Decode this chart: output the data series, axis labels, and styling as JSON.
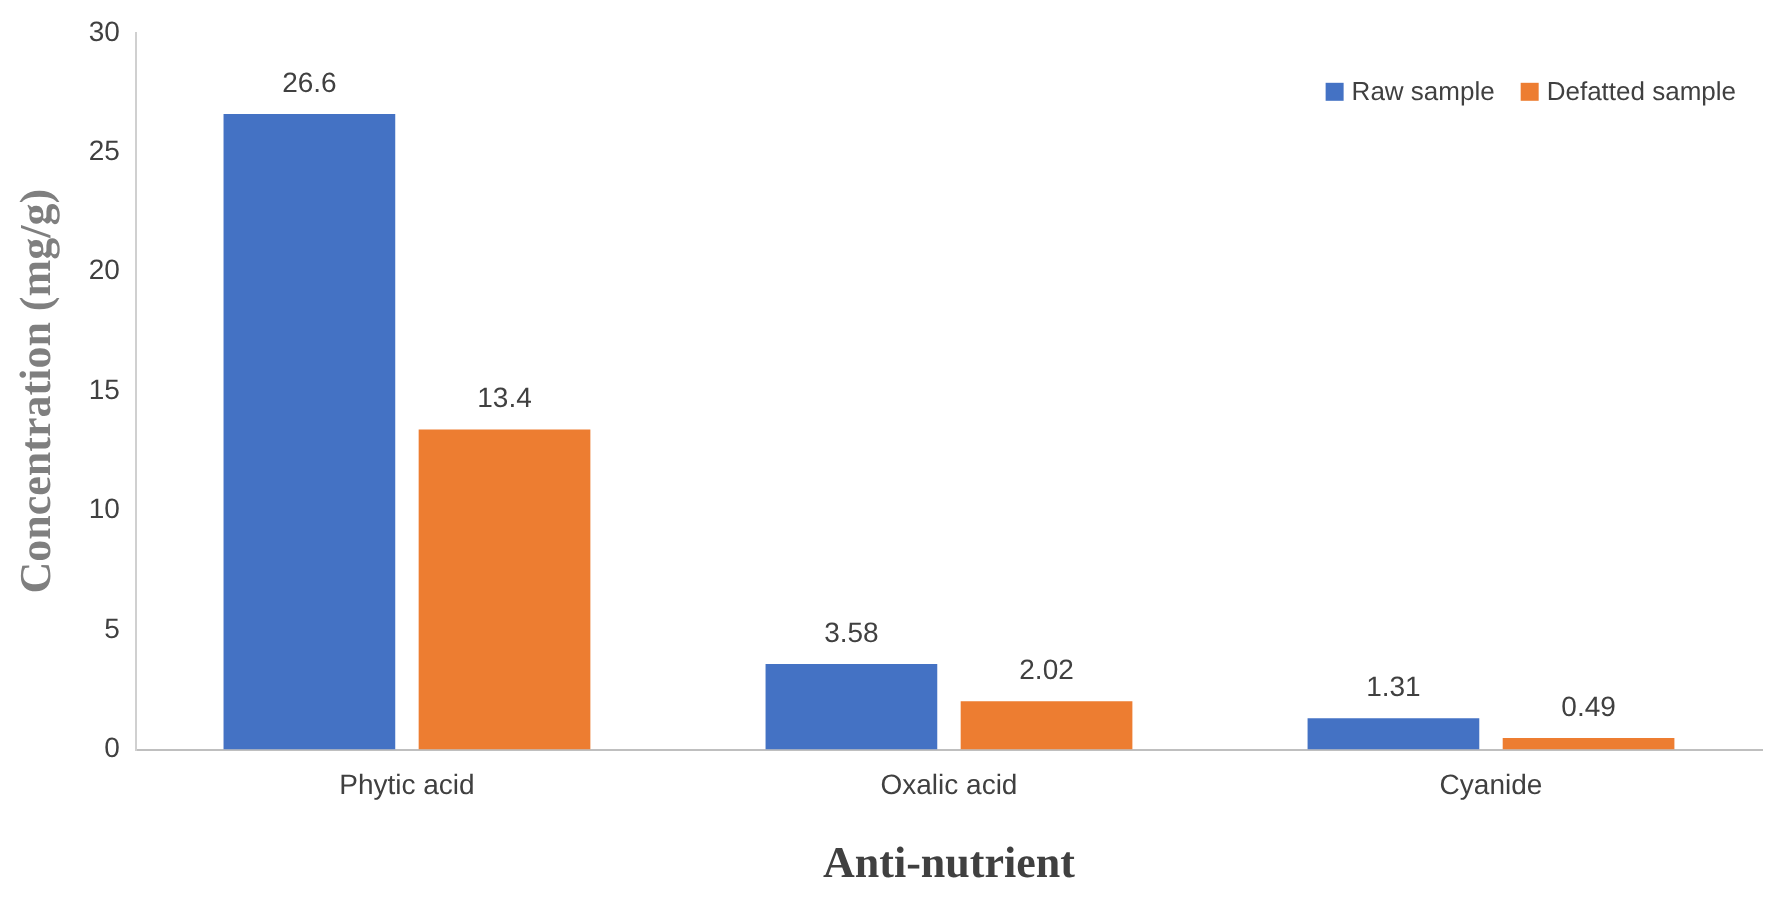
{
  "chart_data": {
    "type": "bar",
    "xlabel": "Anti-nutrient",
    "ylabel": "Concentration (mg/g)",
    "categories": [
      "Phytic acid",
      "Oxalic acid",
      "Cyanide"
    ],
    "series": [
      {
        "name": "Raw sample",
        "color": "#4472c4",
        "values": [
          26.6,
          3.58,
          1.31
        ]
      },
      {
        "name": "Defatted sample",
        "color": "#ed7d31",
        "values": [
          13.4,
          2.02,
          0.49
        ]
      }
    ],
    "ylim": [
      0,
      30
    ],
    "yticks": [
      0,
      5,
      10,
      15,
      20,
      25,
      30
    ],
    "grid": false,
    "legend": "top right",
    "data_labels": true
  }
}
